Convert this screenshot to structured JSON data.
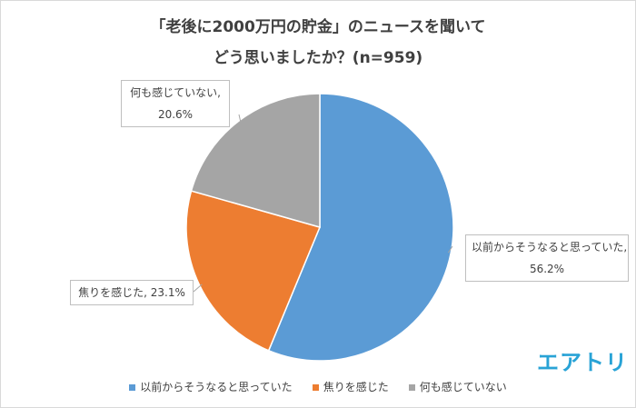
{
  "chart_data": {
    "type": "pie",
    "title": [
      "「老後に2000万円の貯金」のニュースを聞いて",
      "どう思いましたか？(n=959)"
    ],
    "categories": [
      "以前からそうなると思っていた",
      "焦りを感じた",
      "何も感じていない"
    ],
    "values": [
      56.2,
      23.1,
      20.6
    ],
    "value_labels": [
      "以前からそうなると思っていた, 56.2%",
      "焦りを感じた, 23.1%",
      "何も感じていない, 20.6%"
    ],
    "colors": [
      "#5b9bd5",
      "#ed7d31",
      "#a5a5a5"
    ],
    "legend": "bottom",
    "logo": "エアトリ"
  }
}
